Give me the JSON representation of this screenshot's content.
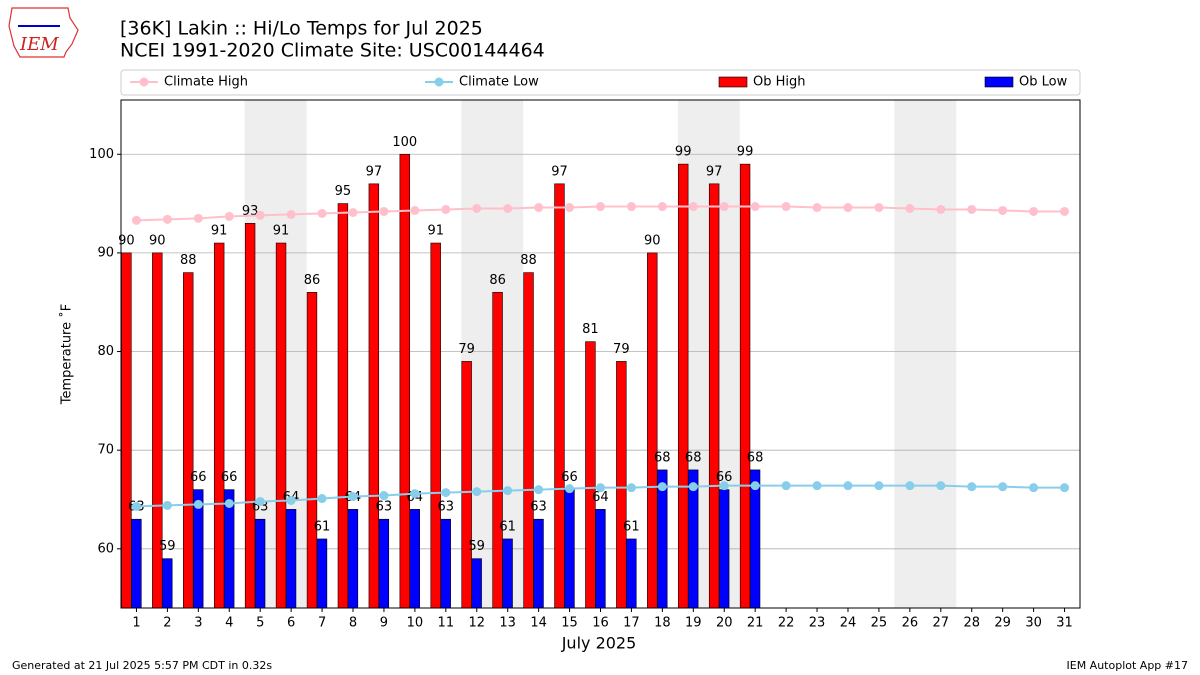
{
  "logo_text": "IEM",
  "footer_left": "Generated at 21 Jul 2025 5:57 PM CDT in 0.32s",
  "footer_right": "IEM Autoplot App #17",
  "chart_data": {
    "type": "bar",
    "title": "[36K] Lakin :: Hi/Lo Temps for Jul 2025",
    "subtitle": "NCEI 1991-2020 Climate Site: USC00144464",
    "x_label": "July 2025",
    "y_label": "Temperature ˚F",
    "categories": [
      "1",
      "2",
      "3",
      "4",
      "5",
      "6",
      "7",
      "8",
      "9",
      "10",
      "11",
      "12",
      "13",
      "14",
      "15",
      "16",
      "17",
      "18",
      "19",
      "20",
      "21",
      "22",
      "23",
      "24",
      "25",
      "26",
      "27",
      "28",
      "29",
      "30",
      "31"
    ],
    "shaded_days": [
      [
        5,
        6
      ],
      [
        12,
        13
      ],
      [
        19,
        20
      ],
      [
        26,
        27
      ]
    ],
    "series": [
      {
        "name": "Climate High",
        "kind": "line",
        "color": "#ffc0cb",
        "values": [
          93.3,
          93.4,
          93.5,
          93.7,
          93.8,
          93.9,
          94.0,
          94.1,
          94.2,
          94.3,
          94.4,
          94.5,
          94.5,
          94.6,
          94.6,
          94.7,
          94.7,
          94.7,
          94.7,
          94.7,
          94.7,
          94.7,
          94.6,
          94.6,
          94.6,
          94.5,
          94.4,
          94.4,
          94.3,
          94.2,
          94.2
        ]
      },
      {
        "name": "Climate Low",
        "kind": "line",
        "color": "#87ceeb",
        "values": [
          64.3,
          64.4,
          64.5,
          64.6,
          64.8,
          64.9,
          65.1,
          65.3,
          65.4,
          65.6,
          65.7,
          65.8,
          65.9,
          66.0,
          66.1,
          66.2,
          66.2,
          66.3,
          66.3,
          66.4,
          66.4,
          66.4,
          66.4,
          66.4,
          66.4,
          66.4,
          66.4,
          66.3,
          66.3,
          66.2,
          66.2
        ]
      },
      {
        "name": "Ob High",
        "kind": "bar",
        "color": "#ff0000",
        "values": [
          90,
          90,
          88,
          91,
          93,
          91,
          86,
          95,
          97,
          100,
          91,
          79,
          86,
          88,
          97,
          81,
          79,
          90,
          99,
          97,
          99,
          null,
          null,
          null,
          null,
          null,
          null,
          null,
          null,
          null,
          null
        ]
      },
      {
        "name": "Ob Low",
        "kind": "bar",
        "color": "#0000ff",
        "values": [
          63,
          59,
          66,
          66,
          63,
          64,
          61,
          64,
          63,
          64,
          63,
          59,
          61,
          63,
          66,
          64,
          61,
          68,
          68,
          66,
          68,
          null,
          null,
          null,
          null,
          null,
          null,
          null,
          null,
          null,
          null
        ]
      }
    ],
    "ylim": [
      54,
      105.5
    ],
    "yticks": [
      60,
      70,
      80,
      90,
      100
    ],
    "grid": true,
    "legend": "top"
  }
}
